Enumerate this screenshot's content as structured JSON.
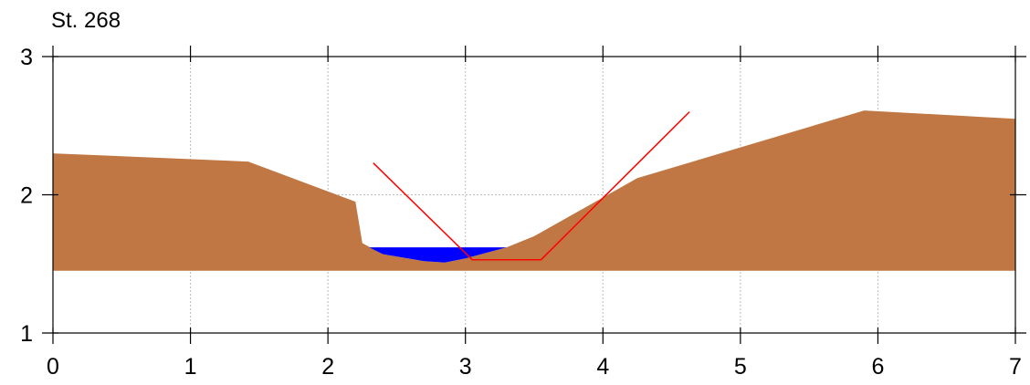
{
  "chart_data": {
    "type": "area",
    "title": "St. 268",
    "xlabel": "",
    "ylabel": "",
    "xlim": [
      0,
      7
    ],
    "ylim": [
      1,
      3
    ],
    "grid": true,
    "xticks": [
      "0",
      "1",
      "2",
      "3",
      "4",
      "5",
      "6",
      "7"
    ],
    "yticks": [
      "1",
      "2",
      "3"
    ],
    "series": [
      {
        "kind": "ground",
        "color": "#C07743",
        "base": 1.45,
        "points": [
          [
            0.0,
            2.3
          ],
          [
            1.42,
            2.24
          ],
          [
            2.2,
            1.95
          ],
          [
            2.25,
            1.65
          ],
          [
            2.4,
            1.57
          ],
          [
            2.7,
            1.52
          ],
          [
            2.85,
            1.51
          ],
          [
            3.0,
            1.54
          ],
          [
            3.3,
            1.62
          ],
          [
            3.5,
            1.7
          ],
          [
            4.25,
            2.12
          ],
          [
            5.9,
            2.61
          ],
          [
            7.0,
            2.55
          ]
        ]
      },
      {
        "kind": "water",
        "color": "#0000FF",
        "surface": 1.62,
        "points": [
          [
            2.3,
            1.62
          ],
          [
            2.4,
            1.57
          ],
          [
            2.7,
            1.52
          ],
          [
            2.85,
            1.51
          ],
          [
            3.0,
            1.54
          ],
          [
            3.3,
            1.62
          ]
        ]
      },
      {
        "kind": "design-profile",
        "color": "#FF0000",
        "points": [
          [
            2.33,
            2.23
          ],
          [
            3.05,
            1.53
          ],
          [
            3.55,
            1.53
          ],
          [
            4.63,
            2.6
          ]
        ]
      }
    ]
  }
}
